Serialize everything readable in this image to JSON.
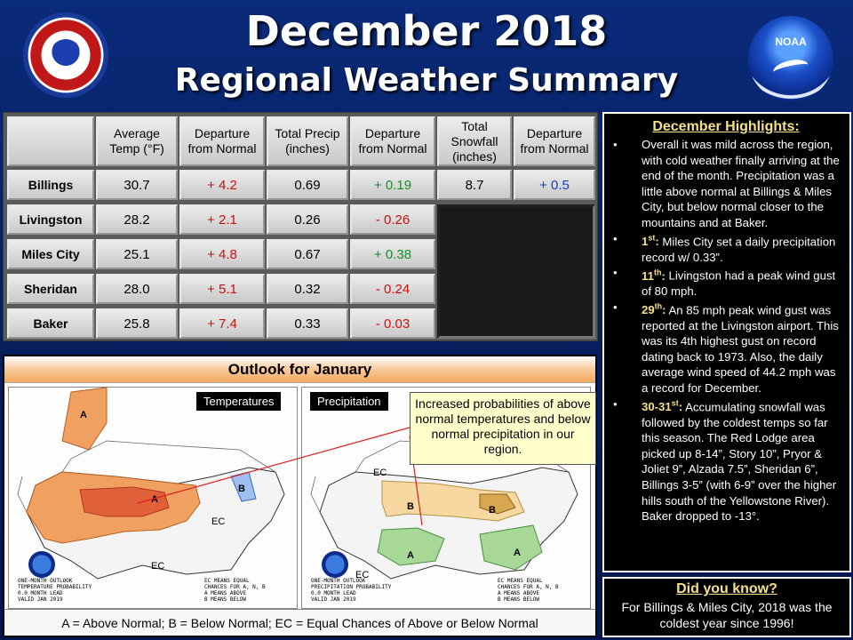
{
  "header": {
    "title": "December 2018",
    "subtitle": "Regional Weather Summary",
    "nws_logo_text": "NATIONAL WEATHER SERVICE",
    "noaa_logo_text": "NOAA"
  },
  "table": {
    "headers": [
      "Average Temp (°F)",
      "Departure from Normal",
      "Total Precip (inches)",
      "Departure from Normal",
      "Total Snowfall (inches)",
      "Departure from Normal"
    ],
    "rows": [
      {
        "station": "Billings",
        "avg_temp": "30.7",
        "temp_dep": "+ 4.2",
        "precip": "0.69",
        "precip_dep": "+ 0.19",
        "snow": "8.7",
        "snow_dep": "+ 0.5"
      },
      {
        "station": "Livingston",
        "avg_temp": "28.2",
        "temp_dep": "+ 2.1",
        "precip": "0.26",
        "precip_dep": "- 0.26"
      },
      {
        "station": "Miles City",
        "avg_temp": "25.1",
        "temp_dep": "+ 4.8",
        "precip": "0.67",
        "precip_dep": "+ 0.38"
      },
      {
        "station": "Sheridan",
        "avg_temp": "28.0",
        "temp_dep": "+ 5.1",
        "precip": "0.32",
        "precip_dep": "- 0.24"
      },
      {
        "station": "Baker",
        "avg_temp": "25.8",
        "temp_dep": "+ 7.4",
        "precip": "0.33",
        "precip_dep": "- 0.03"
      }
    ]
  },
  "outlook": {
    "title": "Outlook for January",
    "temp_label": "Temperatures",
    "precip_label": "Precipitation",
    "callout": "Increased probabilities of above normal temperatures and below normal precipitation in our region.",
    "legend": "A = Above Normal;  B = Below Normal;  EC = Equal Chances of Above or Below Normal",
    "temp_map_note": "ONE-MONTH OUTLOOK\nTEMPERATURE PROBABILITY\n0.0 MONTH LEAD\nVALID JAN 2019",
    "precip_map_note": "ONE-MONTH OUTLOOK\nPRECIPITATION PROBABILITY\n0.0 MONTH LEAD\nVALID JAN 2019",
    "map_legend": "EC MEANS EQUAL\nCHANCES FOR A, N, B\nA MEANS ABOVE\nB MEANS BELOW",
    "labels": {
      "a": "A",
      "b": "B",
      "ec": "EC"
    }
  },
  "highlights": {
    "title": "December Highlights:",
    "items": [
      {
        "date": "",
        "sup": "",
        "text": "Overall it was mild across the region, with cold weather finally arriving at the end of the month. Precipitation was a little above normal at Billings & Miles City, but below normal closer to the mountains and at Baker."
      },
      {
        "date": "1",
        "sup": "st",
        "text": " Miles City set a daily precipitation record w/ 0.33”."
      },
      {
        "date": "11",
        "sup": "th",
        "text": " Livingston had a peak wind gust of 80 mph."
      },
      {
        "date": "29",
        "sup": "th",
        "text": "  An 85 mph peak wind gust was reported at the Livingston airport. This was its 4th highest gust on record dating back to 1973. Also, the daily average wind speed of 44.2 mph was a record for December."
      },
      {
        "date": "30-31",
        "sup": "st",
        "text": "  Accumulating snowfall was followed by the coldest temps so far this season. The Red Lodge area picked up 8-14”, Story 10”, Pryor & Joliet 9”, Alzada 7.5”, Sheridan 6”, Billings 3-5” (with 6-9” over the higher hills south of the Yellowstone River). Baker dropped to -13°."
      }
    ]
  },
  "did_you_know": {
    "title": "Did you know?",
    "text": "For Billings & Miles City, 2018 was the coldest year since 1996!"
  },
  "colors": {
    "above": "#d01010",
    "below_precip": "#12902a",
    "snow_dep": "#1a3ac0",
    "highlight_yellow": "#f6e08a"
  }
}
